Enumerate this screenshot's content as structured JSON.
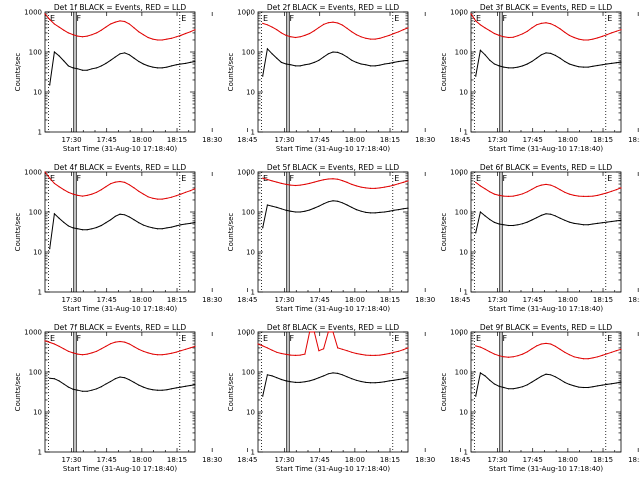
{
  "chart_data": {
    "type": "line",
    "layout": "3x3 grid",
    "colors": {
      "events": "#000000",
      "lld": "#e00000"
    },
    "xaxis": {
      "label": "Start Time (31-Aug-10 17:18:40)",
      "tick_labels": [
        "17:30",
        "17:45",
        "18:00",
        "18:15",
        "18:30",
        "18:45"
      ],
      "range_min": [
        0,
        64
      ]
    },
    "yaxis": {
      "label": "Counts/sec",
      "scale": "log",
      "range": [
        1,
        1000
      ],
      "tick_labels": [
        "1",
        "10",
        "100",
        "1000"
      ]
    },
    "markers": {
      "labels": [
        "E",
        "F",
        "E"
      ],
      "times_min": [
        1.5,
        12.8,
        57.5
      ],
      "line_styles": [
        "dotted",
        "solid-double",
        "dotted"
      ]
    },
    "panels": [
      {
        "title": "Det 1f BLACK = Events, RED = LLD",
        "time_min": [
          0,
          2,
          4,
          6,
          8,
          10,
          12,
          14,
          16,
          18,
          20,
          22,
          24,
          26,
          28,
          30,
          32,
          34,
          36,
          38,
          40,
          42,
          44,
          46,
          48,
          50,
          52,
          54,
          56,
          58,
          60,
          62,
          64
        ],
        "events": [
          null,
          15,
          100,
          80,
          60,
          45,
          40,
          38,
          35,
          35,
          38,
          40,
          45,
          52,
          62,
          75,
          90,
          95,
          85,
          70,
          58,
          50,
          45,
          42,
          40,
          40,
          42,
          45,
          48,
          50,
          52,
          55,
          58
        ],
        "lld": [
          900,
          650,
          500,
          420,
          350,
          300,
          270,
          250,
          240,
          250,
          270,
          300,
          350,
          420,
          500,
          560,
          600,
          580,
          500,
          400,
          320,
          270,
          230,
          210,
          200,
          200,
          210,
          220,
          240,
          260,
          290,
          320,
          360
        ]
      },
      {
        "title": "Det 2f BLACK = Events, RED = LLD",
        "time_min": [
          0,
          2,
          4,
          6,
          8,
          10,
          12,
          14,
          16,
          18,
          20,
          22,
          24,
          26,
          28,
          30,
          32,
          34,
          36,
          38,
          40,
          42,
          44,
          46,
          48,
          50,
          52,
          54,
          56,
          58,
          60,
          62,
          64
        ],
        "events": [
          null,
          25,
          120,
          90,
          70,
          55,
          50,
          48,
          45,
          45,
          48,
          50,
          55,
          62,
          75,
          90,
          100,
          98,
          88,
          75,
          62,
          55,
          50,
          48,
          45,
          45,
          47,
          50,
          52,
          55,
          58,
          60,
          62
        ],
        "lld": [
          null,
          520,
          480,
          420,
          360,
          300,
          260,
          240,
          230,
          240,
          260,
          290,
          340,
          410,
          490,
          540,
          560,
          530,
          470,
          390,
          320,
          270,
          240,
          220,
          210,
          210,
          220,
          240,
          260,
          290,
          320,
          360,
          400
        ]
      },
      {
        "title": "Det 3f BLACK = Events, RED = LLD",
        "time_min": [
          0,
          2,
          4,
          6,
          8,
          10,
          12,
          14,
          16,
          18,
          20,
          22,
          24,
          26,
          28,
          30,
          32,
          34,
          36,
          38,
          40,
          42,
          44,
          46,
          48,
          50,
          52,
          54,
          56,
          58,
          60,
          62,
          64
        ],
        "events": [
          null,
          25,
          110,
          85,
          62,
          50,
          45,
          42,
          40,
          40,
          42,
          45,
          50,
          58,
          70,
          85,
          95,
          92,
          82,
          70,
          58,
          50,
          46,
          43,
          42,
          42,
          44,
          46,
          48,
          50,
          52,
          54,
          56
        ],
        "lld": [
          900,
          600,
          480,
          400,
          340,
          290,
          260,
          240,
          230,
          235,
          255,
          285,
          330,
          400,
          480,
          520,
          540,
          510,
          450,
          380,
          310,
          260,
          230,
          210,
          200,
          200,
          210,
          225,
          245,
          270,
          300,
          330,
          360
        ]
      },
      {
        "title": "Det 4f BLACK = Events, RED = LLD",
        "time_min": [
          0,
          2,
          4,
          6,
          8,
          10,
          12,
          14,
          16,
          18,
          20,
          22,
          24,
          26,
          28,
          30,
          32,
          34,
          36,
          38,
          40,
          42,
          44,
          46,
          48,
          50,
          52,
          54,
          56,
          58,
          60,
          62,
          64
        ],
        "events": [
          null,
          12,
          90,
          70,
          55,
          45,
          40,
          38,
          36,
          36,
          38,
          41,
          46,
          54,
          64,
          78,
          88,
          85,
          75,
          64,
          54,
          47,
          43,
          40,
          38,
          38,
          40,
          42,
          45,
          48,
          50,
          52,
          55
        ],
        "lld": [
          1000,
          700,
          520,
          430,
          360,
          310,
          280,
          260,
          250,
          260,
          280,
          310,
          360,
          430,
          510,
          560,
          580,
          550,
          480,
          400,
          330,
          280,
          240,
          220,
          210,
          210,
          220,
          235,
          255,
          280,
          310,
          340,
          380
        ]
      },
      {
        "title": "Det 5f BLACK = Events, RED = LLD",
        "time_min": [
          0,
          2,
          4,
          6,
          8,
          10,
          12,
          14,
          16,
          18,
          20,
          22,
          24,
          26,
          28,
          30,
          32,
          34,
          36,
          38,
          40,
          42,
          44,
          46,
          48,
          50,
          52,
          54,
          56,
          58,
          60,
          62,
          64
        ],
        "events": [
          null,
          40,
          150,
          140,
          130,
          120,
          110,
          105,
          100,
          100,
          105,
          112,
          125,
          140,
          160,
          180,
          190,
          185,
          170,
          150,
          130,
          115,
          105,
          98,
          95,
          95,
          98,
          100,
          105,
          110,
          115,
          120,
          125
        ],
        "lld": [
          null,
          700,
          650,
          600,
          560,
          520,
          490,
          470,
          460,
          470,
          490,
          520,
          560,
          600,
          640,
          670,
          680,
          660,
          610,
          550,
          490,
          450,
          420,
          400,
          390,
          390,
          400,
          420,
          440,
          470,
          510,
          550,
          600
        ]
      },
      {
        "title": "Det 6f BLACK = Events, RED = LLD",
        "time_min": [
          0,
          2,
          4,
          6,
          8,
          10,
          12,
          14,
          16,
          18,
          20,
          22,
          24,
          26,
          28,
          30,
          32,
          34,
          36,
          38,
          40,
          42,
          44,
          46,
          48,
          50,
          52,
          54,
          56,
          58,
          60,
          62,
          64
        ],
        "events": [
          null,
          30,
          100,
          80,
          65,
          55,
          50,
          48,
          46,
          46,
          48,
          51,
          56,
          63,
          72,
          82,
          90,
          88,
          80,
          70,
          62,
          56,
          52,
          50,
          48,
          48,
          50,
          52,
          54,
          56,
          58,
          60,
          62
        ],
        "lld": [
          null,
          550,
          450,
          380,
          320,
          280,
          260,
          250,
          245,
          250,
          265,
          285,
          320,
          370,
          430,
          470,
          490,
          470,
          420,
          360,
          310,
          280,
          260,
          250,
          245,
          245,
          250,
          260,
          280,
          300,
          330,
          360,
          400
        ]
      },
      {
        "title": "Det 7f BLACK = Events, RED = LLD",
        "time_min": [
          0,
          2,
          4,
          6,
          8,
          10,
          12,
          14,
          16,
          18,
          20,
          22,
          24,
          26,
          28,
          30,
          32,
          34,
          36,
          38,
          40,
          42,
          44,
          46,
          48,
          50,
          52,
          54,
          56,
          58,
          60,
          62,
          64
        ],
        "events": [
          null,
          70,
          68,
          60,
          50,
          42,
          37,
          35,
          33,
          33,
          35,
          38,
          43,
          50,
          58,
          68,
          75,
          72,
          64,
          55,
          47,
          42,
          38,
          36,
          35,
          35,
          36,
          38,
          40,
          42,
          44,
          46,
          48
        ],
        "lld": [
          600,
          550,
          500,
          440,
          380,
          330,
          300,
          280,
          270,
          280,
          300,
          330,
          380,
          440,
          510,
          560,
          580,
          560,
          500,
          430,
          370,
          330,
          300,
          280,
          270,
          270,
          280,
          295,
          315,
          340,
          370,
          400,
          440
        ]
      },
      {
        "title": "Det 8f BLACK = Events, RED = LLD",
        "time_min": [
          0,
          2,
          4,
          6,
          8,
          10,
          12,
          14,
          16,
          18,
          20,
          22,
          24,
          26,
          28,
          30,
          32,
          34,
          36,
          38,
          40,
          42,
          44,
          46,
          48,
          50,
          52,
          54,
          56,
          58,
          60,
          62,
          64
        ],
        "events": [
          null,
          25,
          85,
          80,
          72,
          65,
          60,
          57,
          55,
          55,
          57,
          60,
          65,
          72,
          80,
          90,
          95,
          92,
          85,
          76,
          68,
          62,
          58,
          55,
          54,
          54,
          55,
          57,
          60,
          62,
          65,
          68,
          72
        ],
        "lld": [
          500,
          450,
          400,
          350,
          310,
          290,
          275,
          265,
          260,
          265,
          280,
          1000,
          1000,
          340,
          380,
          1000,
          1000,
          400,
          370,
          340,
          310,
          290,
          275,
          265,
          260,
          260,
          265,
          275,
          290,
          310,
          330,
          360,
          400
        ]
      },
      {
        "title": "Det 9f BLACK = Events, RED = LLD",
        "time_min": [
          0,
          2,
          4,
          6,
          8,
          10,
          12,
          14,
          16,
          18,
          20,
          22,
          24,
          26,
          28,
          30,
          32,
          34,
          36,
          38,
          40,
          42,
          44,
          46,
          48,
          50,
          52,
          54,
          56,
          58,
          60,
          62,
          64
        ],
        "events": [
          null,
          25,
          95,
          80,
          62,
          50,
          44,
          41,
          38,
          38,
          40,
          43,
          48,
          56,
          66,
          78,
          88,
          85,
          76,
          65,
          55,
          49,
          45,
          42,
          41,
          41,
          43,
          45,
          47,
          49,
          51,
          53,
          56
        ],
        "lld": [
          null,
          450,
          420,
          370,
          320,
          280,
          255,
          240,
          235,
          240,
          255,
          280,
          320,
          380,
          450,
          500,
          520,
          500,
          440,
          370,
          310,
          270,
          240,
          225,
          215,
          215,
          225,
          240,
          260,
          285,
          310,
          340,
          370
        ]
      }
    ]
  }
}
